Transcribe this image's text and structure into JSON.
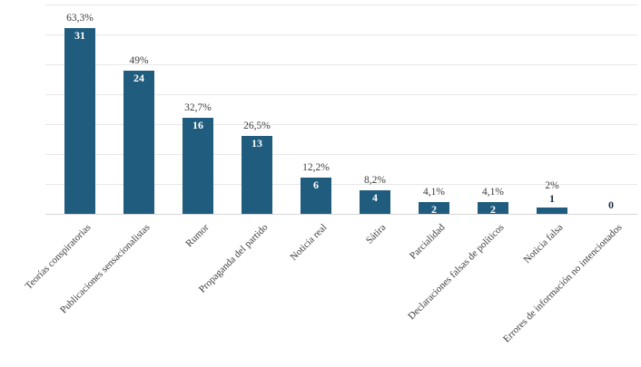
{
  "chart_data": {
    "type": "bar",
    "title": "",
    "xlabel": "",
    "ylabel": "",
    "categories": [
      "Teorías conspiratorias",
      "Publicaciones sensacionalistas",
      "Rumor",
      "Propaganda del partido",
      "Noticia real",
      "Sátira",
      "Parcialidad",
      "Declaraciones falsas de políticos",
      "Noticia falsa",
      "Errores de información no intencionados"
    ],
    "values": [
      31,
      24,
      16,
      13,
      6,
      4,
      2,
      2,
      1,
      0
    ],
    "percent_labels": [
      "63,3%",
      "49%",
      "32,7%",
      "26,5%",
      "12,2%",
      "8,2%",
      "4,1%",
      "4,1%",
      "2%",
      ""
    ],
    "count_labels": [
      "31",
      "24",
      "16",
      "13",
      "6",
      "4",
      "2",
      "2",
      "1",
      "0"
    ],
    "ylim": [
      0,
      35
    ],
    "gridline_step": 5,
    "grid": true,
    "legend": "none",
    "x_tick_rotation_deg": 45,
    "colors": {
      "bar": "#1f5c7d",
      "count_inside": "#ffffff",
      "count_outside": "#1c2f45",
      "label": "#3d3d3d",
      "gridline": "#e8e8e8",
      "axis_line": "#d6d6d6",
      "background": "#ffffff"
    }
  }
}
